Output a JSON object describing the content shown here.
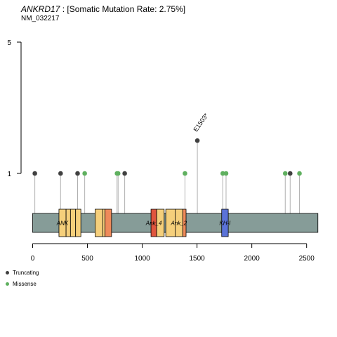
{
  "header": {
    "gene": "ANKRD17",
    "rate_text": " : [Somatic Mutation Rate: 2.75%]",
    "transcript": "NM_032217"
  },
  "legend": [
    {
      "label": "Truncating",
      "color": "#404040"
    },
    {
      "label": "Missense",
      "color": "#5fb05f"
    }
  ],
  "chart_data": {
    "type": "lollipop",
    "x_ticks": [
      0,
      500,
      1000,
      1500,
      2000,
      2500
    ],
    "y_ticks": [
      1,
      5
    ],
    "protein_length": 2603,
    "backbone_color": "#869c98",
    "domains": [
      {
        "name": "ANK",
        "label": "ANK",
        "color": "#f5cf7b",
        "start": 240,
        "end": 305
      },
      {
        "name": "ANK",
        "label": "",
        "color": "#f5cf7b",
        "start": 305,
        "end": 345
      },
      {
        "name": "ANK",
        "label": "",
        "color": "#f5cf7b",
        "start": 345,
        "end": 392
      },
      {
        "name": "ANK",
        "label": "",
        "color": "#f5cf7b",
        "start": 392,
        "end": 440
      },
      {
        "name": "ANK",
        "label": "",
        "color": "#f5cf7b",
        "start": 570,
        "end": 640
      },
      {
        "name": "ANK",
        "label": "",
        "color": "#f5cf7b",
        "start": 640,
        "end": 660
      },
      {
        "name": "ANK",
        "label": "",
        "color": "#ee8a5a",
        "start": 660,
        "end": 720
      },
      {
        "name": "Ank_4",
        "label": "Ank_4",
        "color": "#e0553e",
        "start": 1080,
        "end": 1132
      },
      {
        "name": "Ank_4",
        "label": "",
        "color": "#f5cf7b",
        "start": 1132,
        "end": 1200
      },
      {
        "name": "Ank_2",
        "label": "",
        "color": "#f5cf7b",
        "start": 1215,
        "end": 1300
      },
      {
        "name": "Ank_2",
        "label": "Ank_2",
        "color": "#f5cf7b",
        "start": 1300,
        "end": 1370
      },
      {
        "name": "Ank_2",
        "label": "",
        "color": "#ee8a5a",
        "start": 1370,
        "end": 1400
      },
      {
        "name": "KH-I",
        "label": "KH-I",
        "color": "#5b73d8",
        "start": 1725,
        "end": 1785
      }
    ],
    "mutations": [
      {
        "position": 20,
        "count": 1,
        "type": "Truncating",
        "color": "#404040",
        "label": ""
      },
      {
        "position": 255,
        "count": 1,
        "type": "Truncating",
        "color": "#404040",
        "label": ""
      },
      {
        "position": 410,
        "count": 1,
        "type": "Truncating",
        "color": "#404040",
        "label": ""
      },
      {
        "position": 475,
        "count": 1,
        "type": "Missense",
        "color": "#5fb05f",
        "label": ""
      },
      {
        "position": 770,
        "count": 1,
        "type": "Missense",
        "color": "#5fb05f",
        "label": ""
      },
      {
        "position": 780,
        "count": 1,
        "type": "Missense",
        "color": "#5fb05f",
        "label": ""
      },
      {
        "position": 840,
        "count": 1,
        "type": "Truncating",
        "color": "#404040",
        "label": ""
      },
      {
        "position": 1390,
        "count": 1,
        "type": "Missense",
        "color": "#5fb05f",
        "label": ""
      },
      {
        "position": 1503,
        "count": 2,
        "type": "Truncating",
        "color": "#404040",
        "label": "E1503*"
      },
      {
        "position": 1735,
        "count": 1,
        "type": "Missense",
        "color": "#5fb05f",
        "label": ""
      },
      {
        "position": 1765,
        "count": 1,
        "type": "Missense",
        "color": "#5fb05f",
        "label": ""
      },
      {
        "position": 2305,
        "count": 1,
        "type": "Missense",
        "color": "#5fb05f",
        "label": ""
      },
      {
        "position": 2350,
        "count": 1,
        "type": "Truncating",
        "color": "#404040",
        "label": ""
      },
      {
        "position": 2435,
        "count": 1,
        "type": "Missense",
        "color": "#5fb05f",
        "label": ""
      }
    ]
  }
}
